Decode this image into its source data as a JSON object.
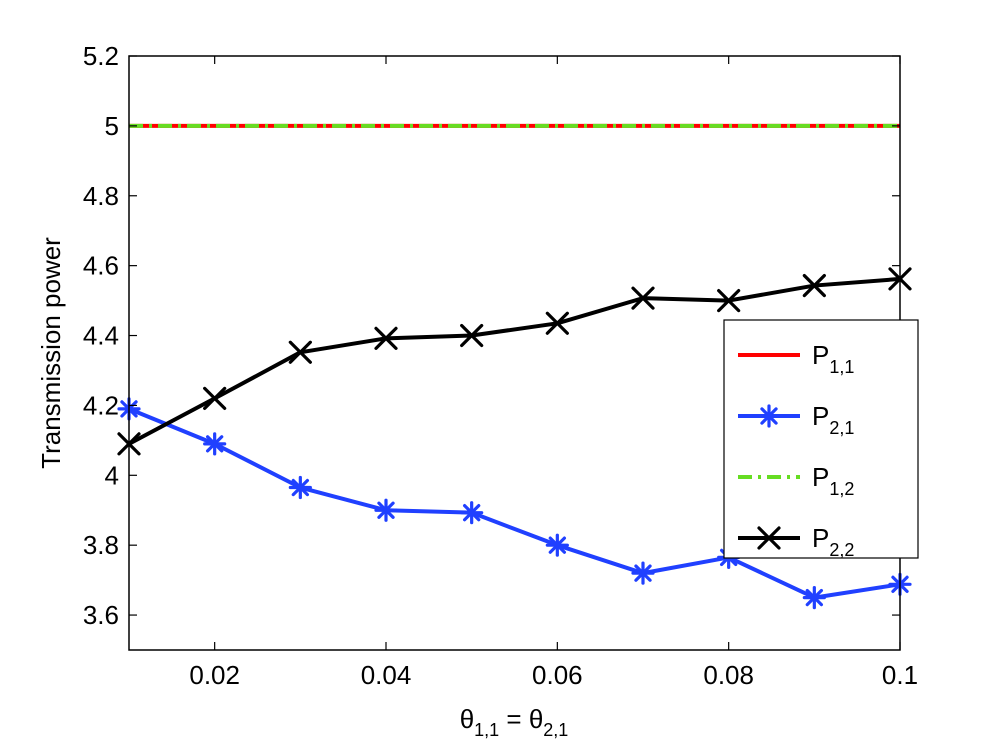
{
  "chart_data": {
    "type": "line",
    "xlabel": {
      "base": "θ",
      "sub1": "1,1",
      "mid": " = θ",
      "sub2": "2,1"
    },
    "ylabel": "Transmission power",
    "xlim": [
      0.01,
      0.1
    ],
    "ylim": [
      3.5,
      5.2
    ],
    "xticks": [
      "0.02",
      "0.04",
      "0.06",
      "0.08",
      "0.1"
    ],
    "xtick_values": [
      0.02,
      0.04,
      0.06,
      0.08,
      0.1
    ],
    "yticks": [
      "3.6",
      "3.8",
      "4",
      "4.2",
      "4.4",
      "4.6",
      "4.8",
      "5",
      "5.2"
    ],
    "ytick_values": [
      3.6,
      3.8,
      4.0,
      4.2,
      4.4,
      4.6,
      4.8,
      5.0,
      5.2
    ],
    "grid": false,
    "legend_position": "right",
    "x": [
      0.01,
      0.02,
      0.03,
      0.04,
      0.05,
      0.06,
      0.07,
      0.08,
      0.09,
      0.1
    ],
    "series": [
      {
        "base": "P",
        "sub": "1,1",
        "color": "#ff0000",
        "style": "solid",
        "marker": "none",
        "values": [
          5,
          5,
          5,
          5,
          5,
          5,
          5,
          5,
          5,
          5
        ]
      },
      {
        "base": "P",
        "sub": "2,1",
        "color": "#2040ff",
        "style": "solid",
        "marker": "asterisk",
        "values": [
          4.19,
          4.09,
          3.965,
          3.9,
          3.893,
          3.8,
          3.72,
          3.765,
          3.65,
          3.688
        ]
      },
      {
        "base": "P",
        "sub": "1,2",
        "color": "#66dd22",
        "style": "dashdot",
        "marker": "none",
        "values": [
          5,
          5,
          5,
          5,
          5,
          5,
          5,
          5,
          5,
          5
        ]
      },
      {
        "base": "P",
        "sub": "2,2",
        "color": "#000000",
        "style": "solid",
        "marker": "x",
        "values": [
          4.09,
          4.22,
          4.352,
          4.392,
          4.4,
          4.435,
          4.507,
          4.5,
          4.543,
          4.562
        ]
      }
    ]
  }
}
